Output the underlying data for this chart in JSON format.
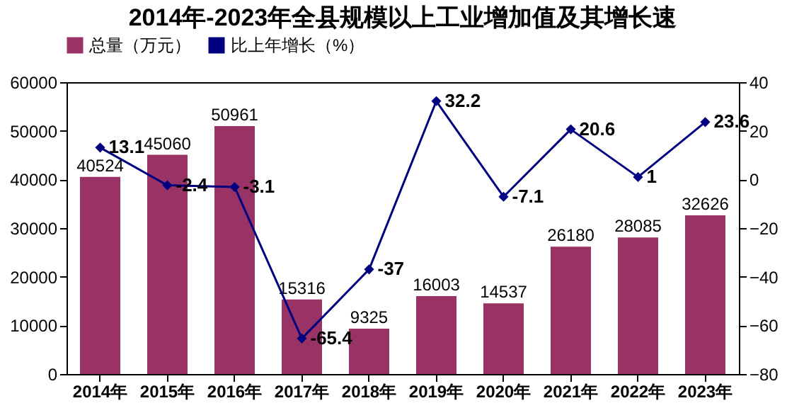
{
  "chart_data": {
    "type": "bar",
    "title": "2014年-2023年全县规模以上工业增加值及其增长速",
    "categories": [
      "2014年",
      "2015年",
      "2016年",
      "2017年",
      "2018年",
      "2019年",
      "2020年",
      "2021年",
      "2022年",
      "2023年"
    ],
    "series": [
      {
        "name": "总量（万元）",
        "color": "#993366",
        "values": [
          40524,
          45060,
          50961,
          15316,
          9325,
          16003,
          14537,
          26180,
          28085,
          32626
        ]
      },
      {
        "name": "比上年增长（%）",
        "type": "line",
        "axis": "y2",
        "color": "#000080",
        "values": [
          13.1,
          -2.4,
          -3.1,
          -65.4,
          -37,
          32.2,
          -7.1,
          20.6,
          1,
          23.6
        ]
      }
    ],
    "ylim": [
      0,
      60000
    ],
    "yticks": [
      0,
      10000,
      20000,
      30000,
      40000,
      50000,
      60000
    ],
    "y2lim": [
      -80,
      40
    ],
    "y2ticks": [
      -80,
      -60,
      -40,
      -20,
      0,
      20,
      40
    ],
    "data_labels": true,
    "legend": "top",
    "marker": "diamond",
    "line_style": "solid",
    "grid": false
  }
}
